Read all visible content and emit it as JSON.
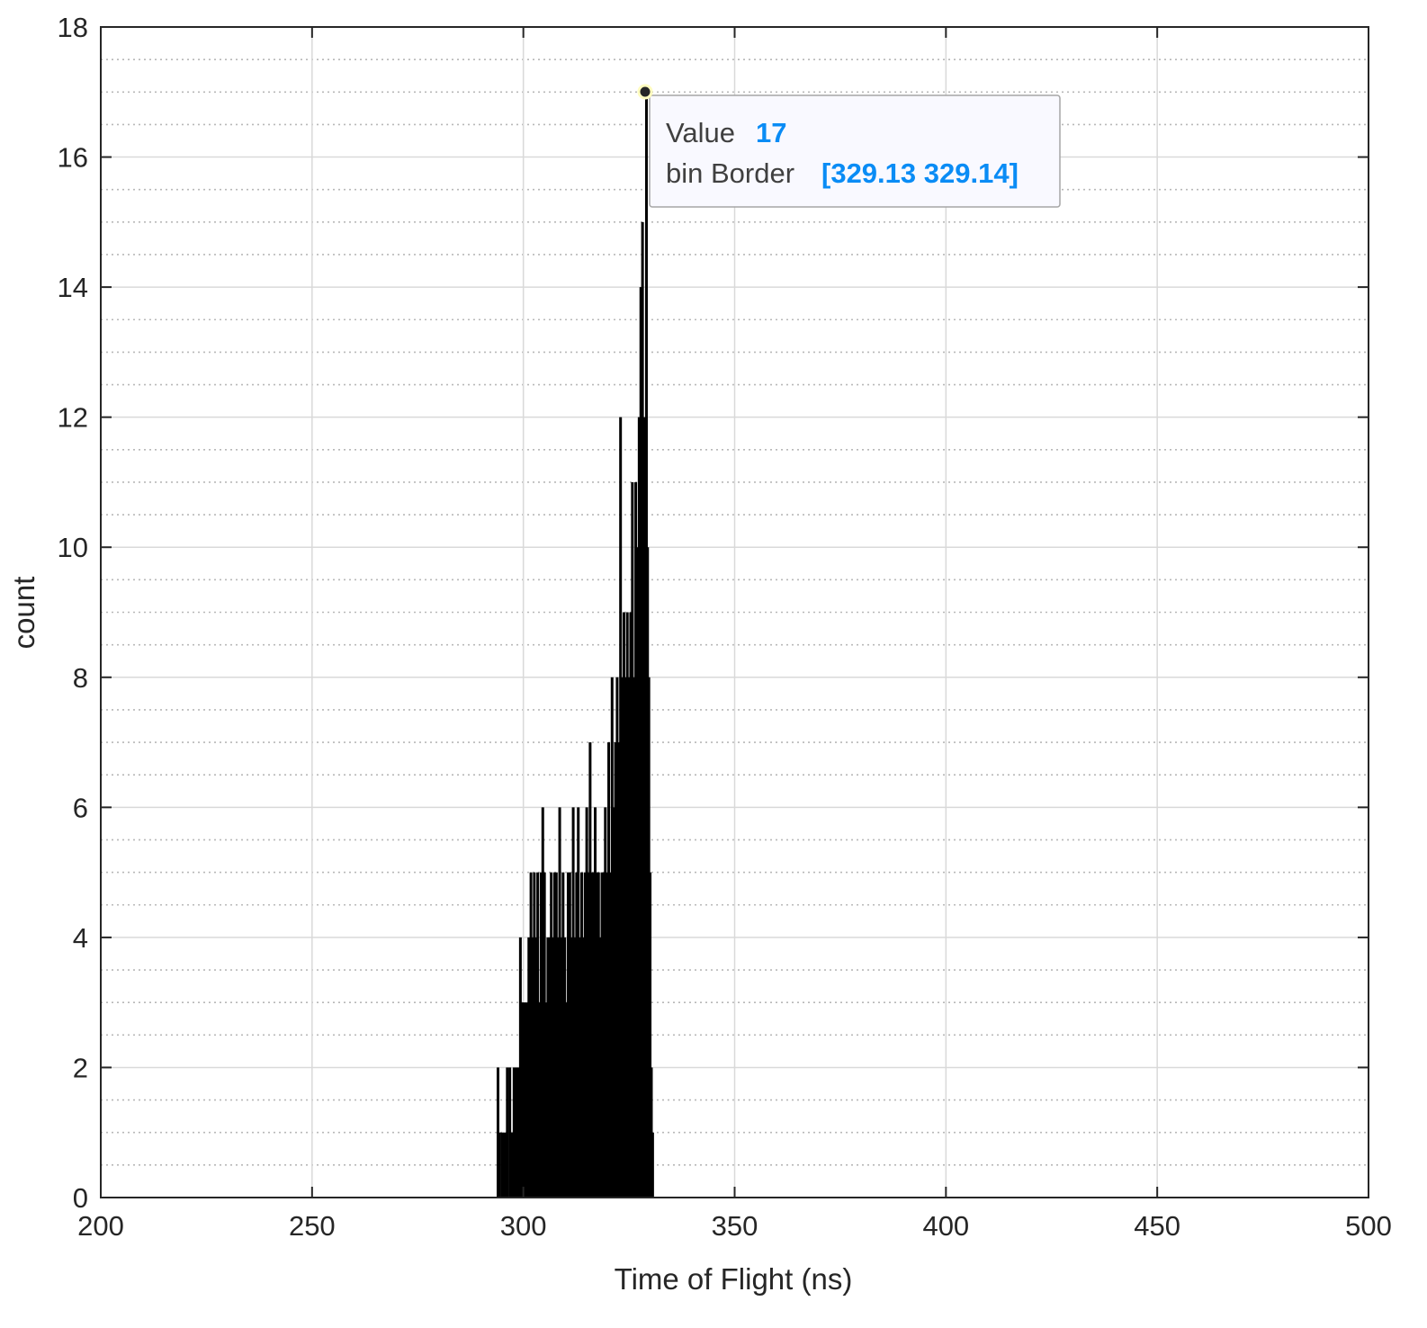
{
  "chart_data": {
    "type": "bar",
    "subtype": "histogram",
    "xlabel": "Time of Flight (ns)",
    "ylabel": "count",
    "xlim": [
      200,
      500
    ],
    "ylim": [
      0,
      18
    ],
    "x_ticks": [
      200,
      250,
      300,
      350,
      400,
      450,
      500
    ],
    "y_ticks": [
      0,
      2,
      4,
      6,
      8,
      10,
      12,
      14,
      16,
      18
    ],
    "grid": true,
    "minor_grid_y": true,
    "bin_width": 0.01,
    "bar_color": "#000000",
    "bins": [
      [
        294.0,
        2
      ],
      [
        294.4,
        1
      ],
      [
        295.0,
        1
      ],
      [
        295.6,
        1
      ],
      [
        296.2,
        2
      ],
      [
        296.8,
        2
      ],
      [
        297.3,
        1
      ],
      [
        297.8,
        2
      ],
      [
        298.3,
        2
      ],
      [
        298.8,
        2
      ],
      [
        299.3,
        4
      ],
      [
        299.8,
        3
      ],
      [
        300.3,
        3
      ],
      [
        300.8,
        3
      ],
      [
        301.3,
        4
      ],
      [
        301.8,
        5
      ],
      [
        302.2,
        4
      ],
      [
        302.6,
        5
      ],
      [
        303.0,
        4
      ],
      [
        303.4,
        5
      ],
      [
        303.8,
        3
      ],
      [
        304.2,
        5
      ],
      [
        304.6,
        6
      ],
      [
        305.0,
        5
      ],
      [
        305.4,
        3
      ],
      [
        305.8,
        4
      ],
      [
        306.2,
        4
      ],
      [
        306.6,
        5
      ],
      [
        307.0,
        4
      ],
      [
        307.4,
        5
      ],
      [
        307.8,
        5
      ],
      [
        308.2,
        4
      ],
      [
        308.6,
        6
      ],
      [
        309.0,
        4
      ],
      [
        309.4,
        5
      ],
      [
        309.8,
        4
      ],
      [
        310.2,
        3
      ],
      [
        310.6,
        5
      ],
      [
        311.0,
        5
      ],
      [
        311.4,
        4
      ],
      [
        311.8,
        6
      ],
      [
        312.2,
        4
      ],
      [
        312.6,
        5
      ],
      [
        313.0,
        6
      ],
      [
        313.4,
        4
      ],
      [
        313.8,
        5
      ],
      [
        314.2,
        4
      ],
      [
        314.6,
        5
      ],
      [
        315.0,
        6
      ],
      [
        315.4,
        5
      ],
      [
        315.8,
        7
      ],
      [
        316.2,
        5
      ],
      [
        316.6,
        5
      ],
      [
        317.0,
        6
      ],
      [
        317.4,
        5
      ],
      [
        317.8,
        5
      ],
      [
        318.2,
        4
      ],
      [
        318.6,
        5
      ],
      [
        319.0,
        5
      ],
      [
        319.4,
        6
      ],
      [
        319.8,
        5
      ],
      [
        320.2,
        7
      ],
      [
        320.6,
        5
      ],
      [
        321.0,
        8
      ],
      [
        321.4,
        6
      ],
      [
        321.8,
        7
      ],
      [
        322.2,
        8
      ],
      [
        322.6,
        7
      ],
      [
        323.0,
        12
      ],
      [
        323.4,
        8
      ],
      [
        323.8,
        9
      ],
      [
        324.2,
        8
      ],
      [
        324.6,
        9
      ],
      [
        325.0,
        8
      ],
      [
        325.4,
        9
      ],
      [
        325.8,
        11
      ],
      [
        326.2,
        8
      ],
      [
        326.6,
        11
      ],
      [
        327.0,
        10
      ],
      [
        327.4,
        12
      ],
      [
        327.8,
        14
      ],
      [
        328.2,
        15
      ],
      [
        328.6,
        12
      ],
      [
        329.13,
        17
      ],
      [
        329.4,
        10
      ],
      [
        329.7,
        8
      ],
      [
        330.0,
        5
      ],
      [
        330.3,
        2
      ],
      [
        330.6,
        1
      ]
    ],
    "datatip": {
      "value_label": "Value",
      "value": "17",
      "border_label": "bin Border",
      "border": "[329.13 329.14]",
      "x": 329.13,
      "y": 17
    }
  },
  "colors": {
    "axis": "#262626",
    "grid": "#d9d9d9",
    "datatip_value": "#0a8cf5",
    "datatip_text": "#404040",
    "datatip_bg": "#f9f9ff"
  }
}
